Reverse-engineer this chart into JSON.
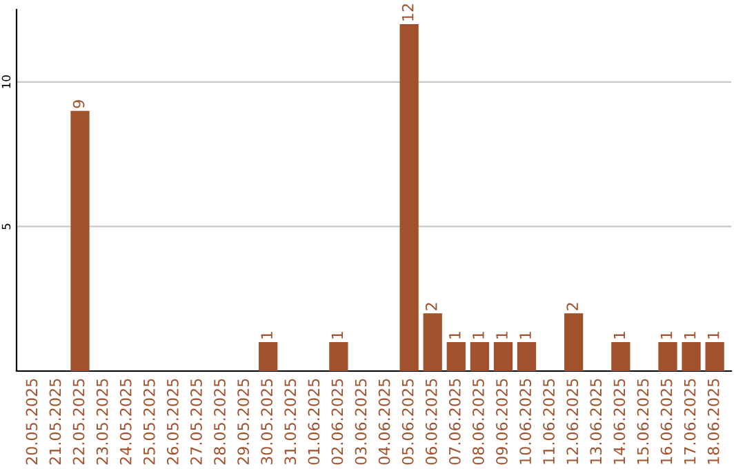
{
  "chart_data": {
    "type": "bar",
    "categories": [
      "20.05.2025",
      "21.05.2025",
      "22.05.2025",
      "23.05.2025",
      "24.05.2025",
      "25.05.2025",
      "26.05.2025",
      "27.05.2025",
      "28.05.2025",
      "29.05.2025",
      "30.05.2025",
      "31.05.2025",
      "01.06.2025",
      "02.06.2025",
      "03.06.2025",
      "04.06.2025",
      "05.06.2025",
      "06.06.2025",
      "07.06.2025",
      "08.06.2025",
      "09.06.2025",
      "10.06.2025",
      "11.06.2025",
      "12.06.2025",
      "13.06.2025",
      "14.06.2025",
      "15.06.2025",
      "16.06.2025",
      "17.06.2025",
      "18.06.2025"
    ],
    "values": [
      0,
      0,
      9,
      0,
      0,
      0,
      0,
      0,
      0,
      0,
      1,
      0,
      0,
      1,
      0,
      0,
      12,
      2,
      1,
      1,
      1,
      1,
      0,
      2,
      0,
      1,
      0,
      1,
      1,
      1
    ],
    "value_labels": [
      null,
      null,
      "9",
      null,
      null,
      null,
      null,
      null,
      null,
      null,
      "1",
      null,
      null,
      "1",
      null,
      null,
      "12",
      "2",
      "1",
      "1",
      "1",
      "1",
      null,
      "2",
      null,
      "1",
      null,
      "1",
      "1",
      "1"
    ],
    "color": "#a0522d",
    "ylim": [
      0,
      12.5
    ],
    "yticks": [
      5,
      10
    ],
    "grid": "y"
  }
}
